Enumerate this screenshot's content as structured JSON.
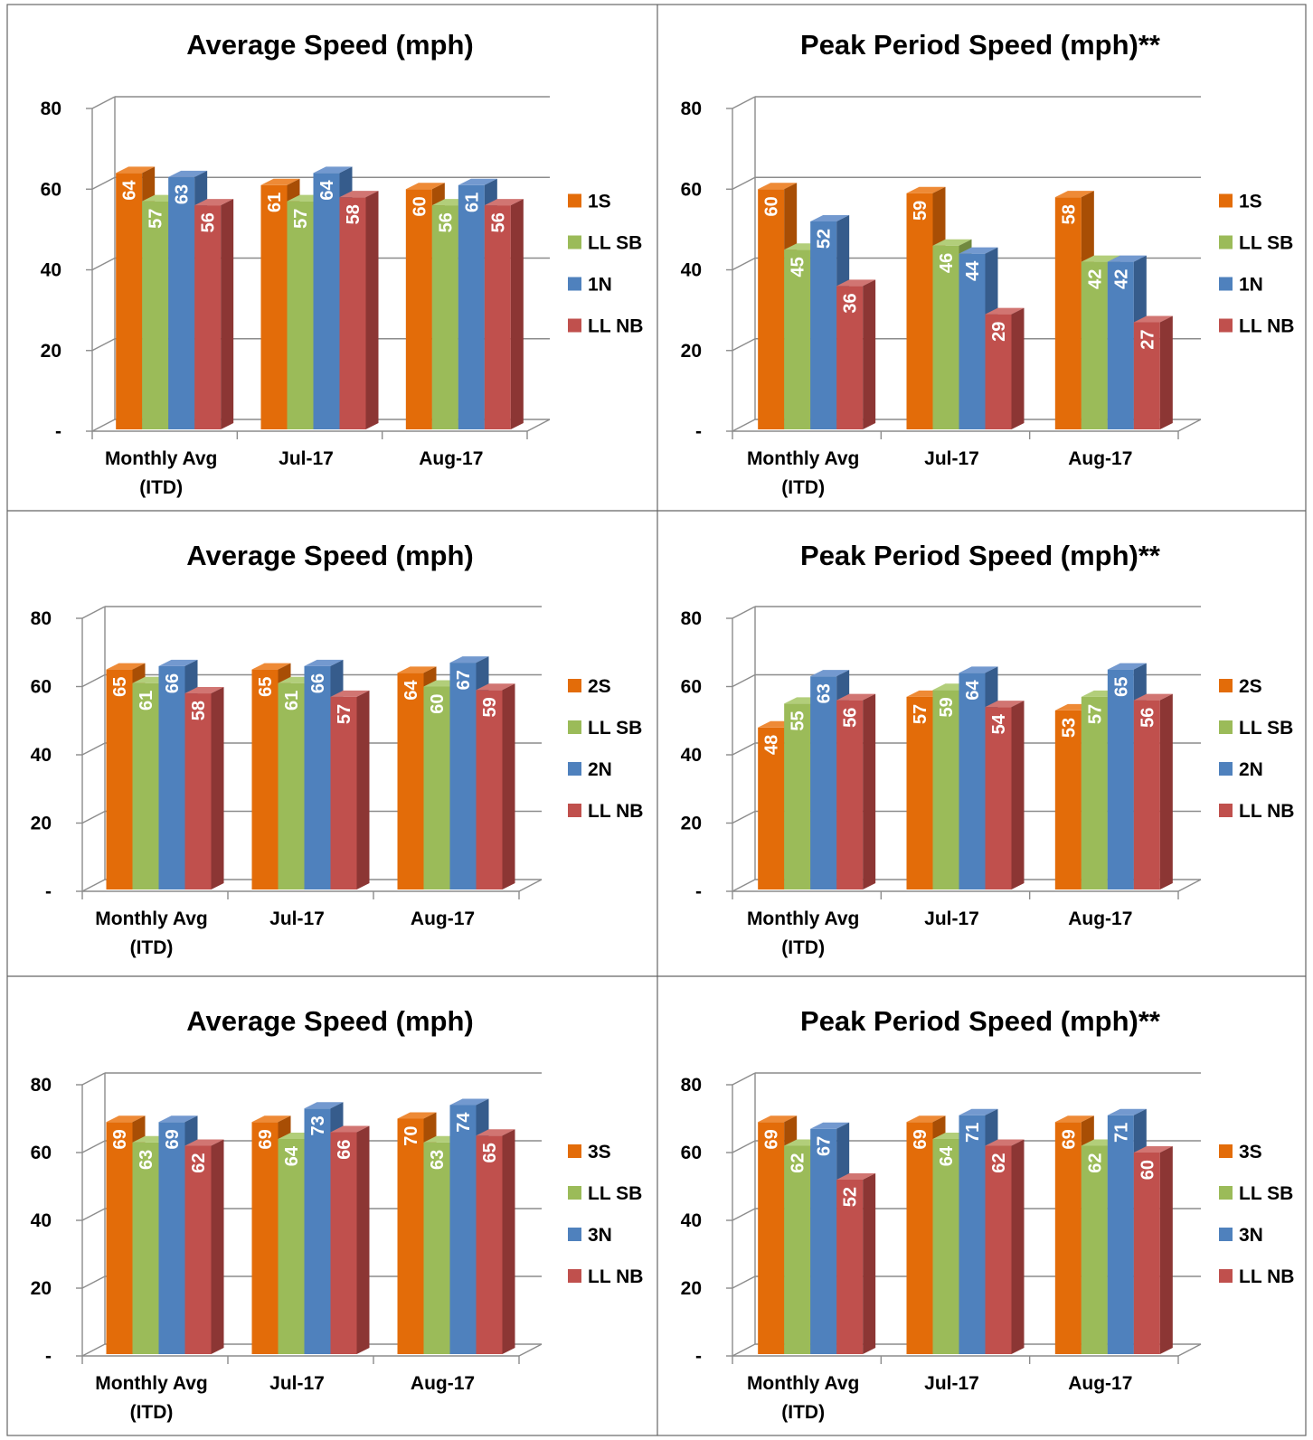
{
  "chart_data": [
    {
      "type": "bar",
      "title": "Average Speed (mph)",
      "categories": [
        "Monthly Avg (ITD)",
        "Jul-17",
        "Aug-17"
      ],
      "series": [
        {
          "name": "1S",
          "values": [
            64,
            61,
            60
          ]
        },
        {
          "name": "LL SB",
          "values": [
            57,
            57,
            56
          ]
        },
        {
          "name": "1N",
          "values": [
            63,
            64,
            61
          ]
        },
        {
          "name": "LL NB",
          "values": [
            56,
            58,
            56
          ]
        }
      ],
      "ylim": [
        0,
        80
      ],
      "yticks": [
        "-",
        "20",
        "40",
        "60",
        "80"
      ],
      "legend": "right",
      "grid": true
    },
    {
      "type": "bar",
      "title": "Peak Period Speed (mph)**",
      "categories": [
        "Monthly Avg (ITD)",
        "Jul-17",
        "Aug-17"
      ],
      "series": [
        {
          "name": "1S",
          "values": [
            60,
            59,
            58
          ]
        },
        {
          "name": "LL SB",
          "values": [
            45,
            46,
            42
          ]
        },
        {
          "name": "1N",
          "values": [
            52,
            44,
            42
          ]
        },
        {
          "name": "LL NB",
          "values": [
            36,
            29,
            27
          ]
        }
      ],
      "ylim": [
        0,
        80
      ],
      "yticks": [
        "-",
        "20",
        "40",
        "60",
        "80"
      ],
      "legend": "right",
      "grid": true
    },
    {
      "type": "bar",
      "title": "Average Speed (mph)",
      "categories": [
        "Monthly Avg (ITD)",
        "Jul-17",
        "Aug-17"
      ],
      "series": [
        {
          "name": "2S",
          "values": [
            65,
            65,
            64
          ]
        },
        {
          "name": "LL SB",
          "values": [
            61,
            61,
            60
          ]
        },
        {
          "name": "2N",
          "values": [
            66,
            66,
            67
          ]
        },
        {
          "name": "LL NB",
          "values": [
            58,
            57,
            59
          ]
        }
      ],
      "ylim": [
        0,
        80
      ],
      "yticks": [
        "-",
        "20",
        "40",
        "60",
        "80"
      ],
      "legend": "right",
      "grid": true
    },
    {
      "type": "bar",
      "title": "Peak Period Speed (mph)**",
      "categories": [
        "Monthly Avg (ITD)",
        "Jul-17",
        "Aug-17"
      ],
      "series": [
        {
          "name": "2S",
          "values": [
            48,
            57,
            53
          ]
        },
        {
          "name": "LL SB",
          "values": [
            55,
            59,
            57
          ]
        },
        {
          "name": "2N",
          "values": [
            63,
            64,
            65
          ]
        },
        {
          "name": "LL NB",
          "values": [
            56,
            54,
            56
          ]
        }
      ],
      "ylim": [
        0,
        80
      ],
      "yticks": [
        "-",
        "20",
        "40",
        "60",
        "80"
      ],
      "legend": "right",
      "grid": true
    },
    {
      "type": "bar",
      "title": "Average Speed (mph)",
      "categories": [
        "Monthly Avg (ITD)",
        "Jul-17",
        "Aug-17"
      ],
      "series": [
        {
          "name": "3S",
          "values": [
            69,
            69,
            70
          ]
        },
        {
          "name": "LL SB",
          "values": [
            63,
            64,
            63
          ]
        },
        {
          "name": "3N",
          "values": [
            69,
            73,
            74
          ]
        },
        {
          "name": "LL NB",
          "values": [
            62,
            66,
            65
          ]
        }
      ],
      "ylim": [
        0,
        80
      ],
      "yticks": [
        "-",
        "20",
        "40",
        "60",
        "80"
      ],
      "legend": "right",
      "grid": true
    },
    {
      "type": "bar",
      "title": "Peak Period Speed (mph)**",
      "categories": [
        "Monthly Avg (ITD)",
        "Jul-17",
        "Aug-17"
      ],
      "series": [
        {
          "name": "3S",
          "values": [
            69,
            69,
            69
          ]
        },
        {
          "name": "LL SB",
          "values": [
            62,
            64,
            62
          ]
        },
        {
          "name": "3N",
          "values": [
            67,
            71,
            71
          ]
        },
        {
          "name": "LL NB",
          "values": [
            52,
            62,
            60
          ]
        }
      ],
      "ylim": [
        0,
        80
      ],
      "yticks": [
        "-",
        "20",
        "40",
        "60",
        "80"
      ],
      "legend": "right",
      "grid": true
    }
  ],
  "colors": {
    "series": [
      "#E36C09",
      "#9BBB59",
      "#4F81BD",
      "#C0504D"
    ],
    "series_top": [
      "#EE8A36",
      "#B2CE7A",
      "#7399CF",
      "#D17572"
    ],
    "series_side": [
      "#A84E05",
      "#71893F",
      "#365C8C",
      "#8C3634"
    ],
    "grid": "#8C8C8C",
    "border": "#666666",
    "text": "#000000",
    "bar_label": "#FFFFFF"
  }
}
